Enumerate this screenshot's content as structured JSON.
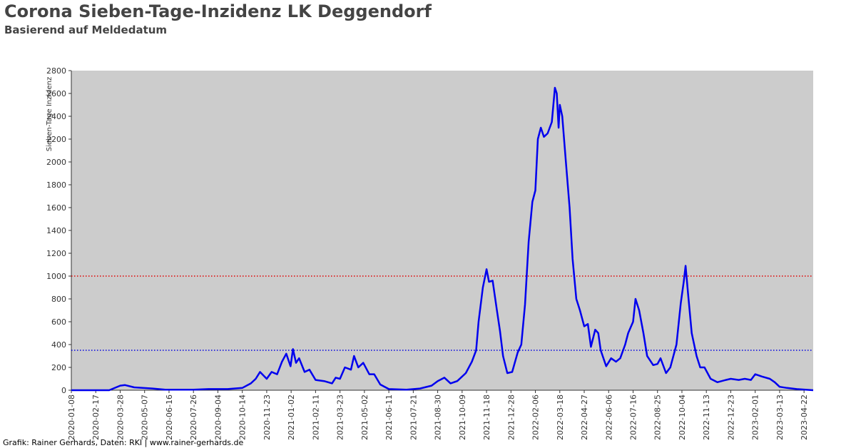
{
  "chart_data": {
    "type": "line",
    "title": "Corona Sieben-Tage-Inzidenz LK Deggendorf",
    "subtitle": "Basierend auf Meldedatum",
    "y_label": "Sieben-Tage Inzidenz",
    "footer": "Grafik: Rainer Gerhards, Daten: RKI | www.rainer-gerhards.de",
    "background": "#cccccc",
    "xlim": [
      "2020-01-08",
      "2023-05-07"
    ],
    "xticks": [
      "2020-01-08",
      "2020-02-17",
      "2020-03-28",
      "2020-05-07",
      "2020-06-16",
      "2020-07-26",
      "2020-09-04",
      "2020-10-14",
      "2020-11-23",
      "2021-01-02",
      "2021-02-11",
      "2021-03-23",
      "2021-05-02",
      "2021-06-11",
      "2021-07-21",
      "2021-08-30",
      "2021-10-09",
      "2021-11-18",
      "2021-12-28",
      "2022-02-06",
      "2022-03-18",
      "2022-04-27",
      "2022-06-06",
      "2022-07-16",
      "2022-08-25",
      "2022-10-04",
      "2022-11-13",
      "2022-12-23",
      "2023-02-01",
      "2023-03-13",
      "2023-04-22"
    ],
    "ylim": [
      0,
      2800
    ],
    "yticks": [
      0,
      200,
      400,
      600,
      800,
      1000,
      1200,
      1400,
      1600,
      1800,
      2000,
      2200,
      2400,
      2600,
      2800
    ],
    "hlines": [
      {
        "value": 1000,
        "color": "#e00000"
      },
      {
        "value": 350,
        "color": "#0000e0"
      }
    ],
    "x": [
      "2020-01-08",
      "2020-03-10",
      "2020-03-28",
      "2020-04-05",
      "2020-04-20",
      "2020-05-20",
      "2020-06-10",
      "2020-07-26",
      "2020-08-20",
      "2020-09-20",
      "2020-10-14",
      "2020-10-28",
      "2020-11-05",
      "2020-11-12",
      "2020-11-23",
      "2020-12-01",
      "2020-12-10",
      "2020-12-18",
      "2020-12-25",
      "2021-01-01",
      "2021-01-05",
      "2021-01-10",
      "2021-01-15",
      "2021-01-24",
      "2021-02-01",
      "2021-02-11",
      "2021-02-25",
      "2021-03-10",
      "2021-03-16",
      "2021-03-23",
      "2021-03-31",
      "2021-04-10",
      "2021-04-15",
      "2021-04-22",
      "2021-04-30",
      "2021-05-10",
      "2021-05-18",
      "2021-05-28",
      "2021-06-11",
      "2021-07-10",
      "2021-08-01",
      "2021-08-20",
      "2021-08-30",
      "2021-09-10",
      "2021-09-20",
      "2021-10-01",
      "2021-10-15",
      "2021-10-25",
      "2021-11-01",
      "2021-11-05",
      "2021-11-12",
      "2021-11-18",
      "2021-11-22",
      "2021-11-28",
      "2021-12-05",
      "2021-12-10",
      "2021-12-15",
      "2021-12-22",
      "2021-12-30",
      "2022-01-08",
      "2022-01-14",
      "2022-01-20",
      "2022-01-26",
      "2022-02-01",
      "2022-02-06",
      "2022-02-10",
      "2022-02-15",
      "2022-02-20",
      "2022-02-26",
      "2022-03-05",
      "2022-03-10",
      "2022-03-13",
      "2022-03-16",
      "2022-03-18",
      "2022-03-22",
      "2022-03-28",
      "2022-04-03",
      "2022-04-08",
      "2022-04-14",
      "2022-04-20",
      "2022-04-27",
      "2022-05-03",
      "2022-05-08",
      "2022-05-15",
      "2022-05-20",
      "2022-05-24",
      "2022-06-02",
      "2022-06-10",
      "2022-06-18",
      "2022-06-25",
      "2022-07-03",
      "2022-07-08",
      "2022-07-16",
      "2022-07-20",
      "2022-07-26",
      "2022-08-02",
      "2022-08-08",
      "2022-08-18",
      "2022-08-25",
      "2022-08-30",
      "2022-09-08",
      "2022-09-15",
      "2022-09-25",
      "2022-10-02",
      "2022-10-07",
      "2022-10-10",
      "2022-10-14",
      "2022-10-20",
      "2022-10-28",
      "2022-11-03",
      "2022-11-10",
      "2022-11-20",
      "2022-12-01",
      "2022-12-15",
      "2022-12-23",
      "2023-01-05",
      "2023-01-15",
      "2023-01-25",
      "2023-02-01",
      "2023-02-12",
      "2023-02-25",
      "2023-03-05",
      "2023-03-13",
      "2023-03-25",
      "2023-04-10",
      "2023-05-07"
    ],
    "series": [
      {
        "name": "Sieben-Tage Inzidenz",
        "color": "#0000ee",
        "values": [
          0,
          0,
          40,
          45,
          25,
          15,
          5,
          5,
          10,
          10,
          20,
          60,
          100,
          160,
          100,
          160,
          140,
          250,
          320,
          210,
          360,
          240,
          280,
          160,
          180,
          90,
          80,
          60,
          110,
          100,
          200,
          180,
          300,
          200,
          240,
          140,
          140,
          50,
          10,
          5,
          15,
          40,
          80,
          110,
          60,
          80,
          150,
          250,
          350,
          600,
          900,
          1060,
          950,
          960,
          700,
          520,
          300,
          150,
          160,
          330,
          400,
          750,
          1300,
          1650,
          1750,
          2200,
          2300,
          2220,
          2250,
          2350,
          2650,
          2600,
          2300,
          2500,
          2400,
          2000,
          1600,
          1150,
          800,
          700,
          560,
          580,
          380,
          530,
          500,
          350,
          210,
          280,
          250,
          280,
          400,
          500,
          600,
          800,
          700,
          500,
          300,
          220,
          230,
          280,
          150,
          200,
          400,
          760,
          950,
          1090,
          850,
          500,
          300,
          200,
          200,
          100,
          70,
          90,
          100,
          90,
          100,
          90,
          140,
          120,
          100,
          70,
          30,
          20,
          10,
          0
        ]
      }
    ]
  }
}
